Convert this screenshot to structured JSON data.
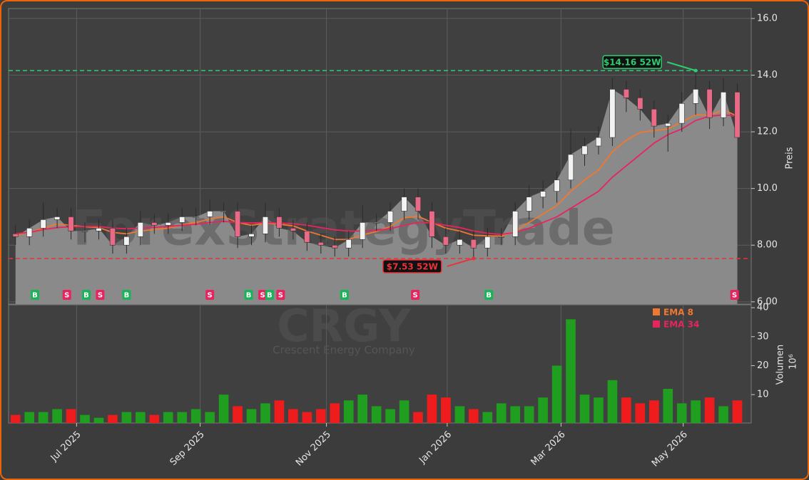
{
  "chart_data": {
    "type": "candlestick",
    "watermark": "ForexStrategyTrade",
    "symbol": "CRGY",
    "company": "Crescent Energy Company",
    "y_label": "Preis",
    "y2_label": "Volumen",
    "y2_unit": "10⁶",
    "x": [
      0,
      1,
      2,
      3,
      4,
      5,
      6,
      7,
      8,
      9,
      10,
      11,
      12,
      13,
      14,
      15,
      16,
      17,
      18,
      19,
      20,
      21,
      22,
      23,
      24,
      25,
      26,
      27,
      28,
      29,
      30,
      31,
      32,
      33,
      34,
      35,
      36,
      37,
      38,
      39,
      40,
      41,
      42,
      43,
      44,
      45,
      46,
      47,
      48,
      49,
      50,
      51,
      52
    ],
    "xlim": [
      -0.5,
      53
    ],
    "xticks": [
      {
        "value": 4.4,
        "label": "Jul 2025"
      },
      {
        "value": 13.3,
        "label": "Sep 2025"
      },
      {
        "value": 22.4,
        "label": "Nov 2025"
      },
      {
        "value": 31.1,
        "label": "Jan 2026"
      },
      {
        "value": 39.3,
        "label": "Mar 2026"
      },
      {
        "value": 48.1,
        "label": "May 2026"
      }
    ],
    "ylim": [
      5.92,
      16.35
    ],
    "yticks": [
      {
        "value": 6,
        "label": "6.00"
      },
      {
        "value": 8,
        "label": "8.00"
      },
      {
        "value": 10,
        "label": "10.0"
      },
      {
        "value": 12,
        "label": "12.0"
      },
      {
        "value": 14,
        "label": "14.0"
      },
      {
        "value": 16,
        "label": "16.0"
      }
    ],
    "y2lim": [
      0.2,
      41
    ],
    "y2ticks": [
      10,
      20,
      30,
      40
    ],
    "grid": true,
    "open": [
      8.4,
      8.3,
      8.6,
      8.9,
      9.0,
      8.5,
      8.5,
      8.6,
      8.0,
      8.3,
      8.8,
      8.7,
      8.8,
      9.0,
      9.0,
      9.2,
      9.2,
      8.3,
      8.4,
      9.0,
      8.6,
      8.5,
      8.1,
      8.0,
      7.9,
      8.2,
      8.8,
      8.8,
      9.2,
      9.7,
      9.2,
      8.3,
      8.0,
      8.2,
      7.9,
      8.3,
      8.3,
      9.2,
      9.7,
      9.9,
      10.3,
      11.2,
      11.5,
      11.8,
      13.5,
      13.2,
      12.8,
      12.2,
      12.3,
      13.0,
      13.5,
      12.5,
      13.4
    ],
    "high": [
      8.7,
      8.9,
      9.5,
      9.3,
      9.3,
      8.8,
      8.9,
      8.9,
      8.6,
      9.2,
      9.1,
      9.1,
      9.3,
      9.3,
      9.6,
      9.5,
      9.5,
      8.7,
      9.5,
      9.3,
      8.9,
      8.8,
      8.4,
      8.3,
      8.5,
      9.4,
      9.1,
      9.5,
      10.0,
      10.0,
      9.5,
      8.6,
      8.5,
      8.5,
      8.6,
      8.6,
      9.5,
      10.1,
      10.3,
      10.6,
      12.1,
      11.8,
      12.2,
      13.9,
      13.8,
      13.5,
      13.1,
      12.6,
      13.4,
      14.16,
      13.8,
      13.9,
      13.7
    ],
    "low": [
      8.0,
      8.0,
      8.3,
      8.6,
      8.2,
      8.1,
      8.2,
      7.7,
      7.7,
      8.0,
      8.4,
      8.4,
      8.5,
      8.7,
      8.7,
      8.8,
      7.9,
      8.0,
      8.1,
      8.3,
      8.2,
      7.8,
      7.7,
      7.6,
      7.6,
      7.9,
      8.5,
      8.5,
      8.9,
      8.9,
      7.9,
      7.7,
      7.7,
      7.53,
      7.6,
      8.0,
      8.0,
      8.9,
      9.3,
      9.5,
      10.0,
      10.8,
      11.2,
      11.5,
      12.7,
      12.4,
      11.8,
      11.3,
      12.0,
      12.6,
      12.1,
      12.2,
      11.8
    ],
    "close": [
      8.3,
      8.6,
      8.9,
      9.0,
      8.5,
      8.5,
      8.6,
      8.0,
      8.3,
      8.8,
      8.7,
      8.8,
      9.0,
      9.0,
      9.2,
      9.2,
      8.3,
      8.4,
      9.0,
      8.6,
      8.5,
      8.1,
      8.0,
      7.9,
      8.2,
      8.8,
      8.8,
      9.2,
      9.7,
      9.2,
      8.3,
      8.0,
      8.2,
      7.9,
      8.3,
      8.3,
      9.2,
      9.7,
      9.9,
      10.3,
      11.2,
      11.5,
      11.8,
      13.5,
      13.2,
      12.8,
      12.2,
      12.3,
      13.0,
      13.5,
      12.5,
      13.4,
      11.8
    ],
    "volume": [
      3,
      4,
      4,
      5,
      5,
      3,
      2,
      3,
      4,
      4,
      3,
      4,
      4,
      5,
      4,
      10,
      6,
      5,
      7,
      8,
      5,
      4,
      5,
      7,
      8,
      10,
      6,
      5,
      8,
      4,
      10,
      9,
      6,
      5,
      4,
      7,
      6,
      6,
      9,
      20,
      36,
      10,
      9,
      15,
      9,
      7,
      8,
      12,
      7,
      8,
      9,
      6,
      8
    ],
    "series": [
      {
        "name": "EMA 8",
        "color": "#f07830",
        "values": [
          8.35,
          8.45,
          8.6,
          8.75,
          8.7,
          8.65,
          8.62,
          8.45,
          8.4,
          8.5,
          8.55,
          8.6,
          8.72,
          8.8,
          8.92,
          9.0,
          8.8,
          8.7,
          8.78,
          8.74,
          8.68,
          8.5,
          8.35,
          8.2,
          8.2,
          8.36,
          8.48,
          8.66,
          8.96,
          9.02,
          8.8,
          8.6,
          8.5,
          8.35,
          8.33,
          8.32,
          8.5,
          8.8,
          9.1,
          9.4,
          9.9,
          10.3,
          10.65,
          11.3,
          11.7,
          11.98,
          12.04,
          12.1,
          12.35,
          12.6,
          12.58,
          12.78,
          12.55
        ]
      },
      {
        "name": "EMA 34",
        "color": "#e8245e",
        "values": [
          8.4,
          8.45,
          8.55,
          8.62,
          8.65,
          8.66,
          8.66,
          8.6,
          8.58,
          8.6,
          8.63,
          8.66,
          8.7,
          8.74,
          8.8,
          8.84,
          8.8,
          8.78,
          8.8,
          8.78,
          8.76,
          8.7,
          8.62,
          8.54,
          8.5,
          8.5,
          8.52,
          8.58,
          8.7,
          8.8,
          8.78,
          8.7,
          8.62,
          8.5,
          8.42,
          8.38,
          8.45,
          8.6,
          8.8,
          9.0,
          9.3,
          9.6,
          9.9,
          10.4,
          10.8,
          11.2,
          11.6,
          11.9,
          12.1,
          12.4,
          12.55,
          12.6,
          12.55
        ]
      }
    ],
    "signals": [
      {
        "x": 1.4,
        "label": "B",
        "color": "#19b35a"
      },
      {
        "x": 3.7,
        "label": "S",
        "color": "#e8245e"
      },
      {
        "x": 5.1,
        "label": "B",
        "color": "#19b35a"
      },
      {
        "x": 6.1,
        "label": "S",
        "color": "#e8245e"
      },
      {
        "x": 8.0,
        "label": "B",
        "color": "#19b35a"
      },
      {
        "x": 14.0,
        "label": "S",
        "color": "#e8245e"
      },
      {
        "x": 16.8,
        "label": "B",
        "color": "#19b35a"
      },
      {
        "x": 17.8,
        "label": "S",
        "color": "#e8245e"
      },
      {
        "x": 18.3,
        "label": "B",
        "color": "#19b35a"
      },
      {
        "x": 19.1,
        "label": "S",
        "color": "#e8245e"
      },
      {
        "x": 23.7,
        "label": "B",
        "color": "#19b35a"
      },
      {
        "x": 28.8,
        "label": "S",
        "color": "#e8245e"
      },
      {
        "x": 34.1,
        "label": "B",
        "color": "#19b35a"
      },
      {
        "x": 51.8,
        "label": "S",
        "color": "#e8245e"
      }
    ],
    "annotations": [
      {
        "x": 49,
        "value": 14.16,
        "label": "$14.16 52W",
        "color": "#2ecc71"
      },
      {
        "x": 33,
        "value": 7.53,
        "label": "$7.53 52W",
        "color": "#e8333a"
      }
    ]
  }
}
